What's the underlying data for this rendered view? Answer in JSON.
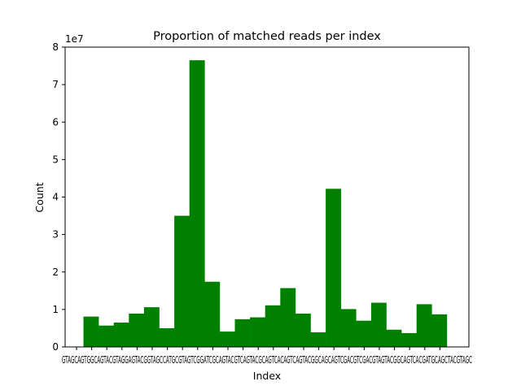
{
  "chart_data": {
    "type": "bar",
    "title": "Proportion of matched reads per index",
    "xlabel": "Index",
    "ylabel": "Count",
    "y_scale_label": "1e7",
    "ylim": [
      0,
      80000000
    ],
    "yticks": [
      0,
      10000000,
      20000000,
      30000000,
      40000000,
      50000000,
      60000000,
      70000000,
      80000000
    ],
    "ytick_labels": [
      "0",
      "1",
      "2",
      "3",
      "4",
      "5",
      "6",
      "7",
      "8"
    ],
    "bar_color": "#008000",
    "x_tick_labels_visible": "GTAGCAGTGGCAGTACGTAGGAGTACGGTAGCCATGCGTAGTCGGATCGCAGTACGTCAGTACGCAGTCACAGTCAGTACGGCAGCAGTCGACGTCGACGTAGTACGGCAGTCACGATGCAGCTACGTAGC",
    "values": [
      8100000,
      5700000,
      6500000,
      8900000,
      10600000,
      5000000,
      35000000,
      76500000,
      17400000,
      4100000,
      7400000,
      7900000,
      11100000,
      15700000,
      8900000,
      3900000,
      42200000,
      10100000,
      7000000,
      11800000,
      4600000,
      3700000,
      11400000,
      8700000
    ]
  }
}
